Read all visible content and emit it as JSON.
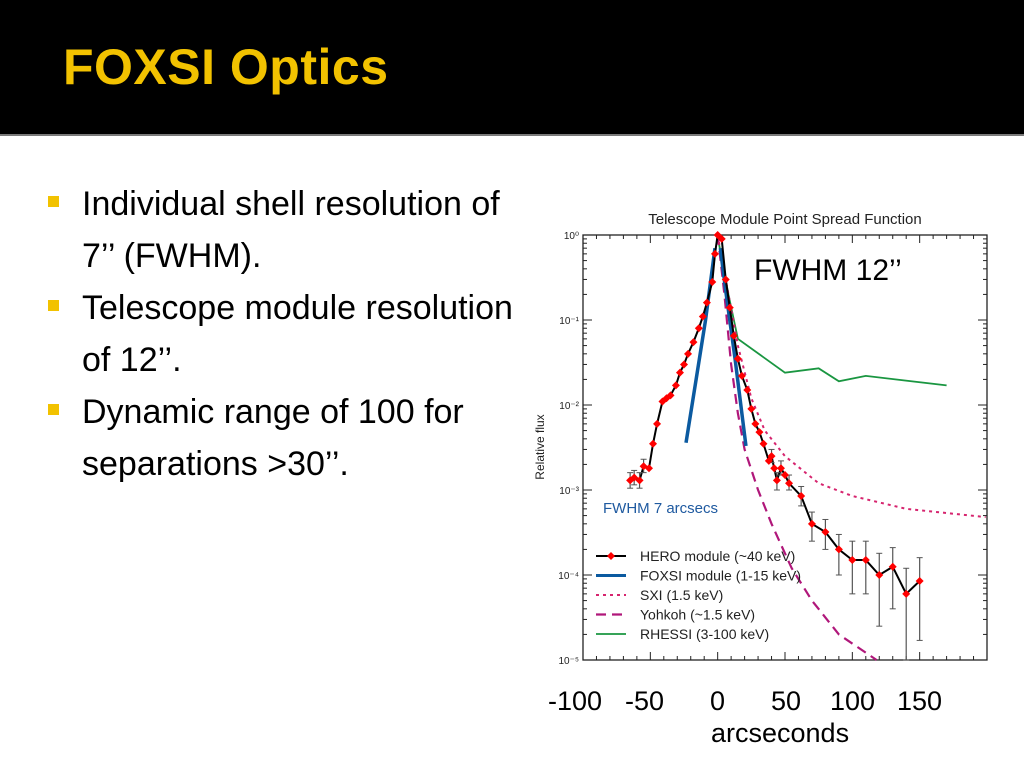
{
  "slide": {
    "title": "FOXSI Optics",
    "bullets": [
      "Individual shell resolution of 7’’ (FWHM).",
      "Telescope module resolution of 12’’.",
      "Dynamic range of 100 for separations >30’’."
    ],
    "x_labels": [
      "-100",
      "-50",
      "0",
      "50",
      "100",
      "150"
    ],
    "x_unit": "arcseconds",
    "annotation": "FWHM 12’’",
    "accent_color": "#f2c200"
  },
  "chart_data": {
    "type": "line",
    "title": "Telescope Module Point Spread Function",
    "xlabel": "",
    "ylabel": "Relative flux",
    "xlim": [
      -100,
      200
    ],
    "ylim": [
      1e-05,
      1
    ],
    "yscale": "log",
    "ytick_labels": [
      "10⁰",
      "10⁻¹",
      "10⁻²",
      "10⁻³",
      "10⁻⁴",
      "10⁻⁵"
    ],
    "annotation": "FWHM 7 arcsecs",
    "legend_position": "bottom-left",
    "series": [
      {
        "name": "HERO module (~40 keV)",
        "color": "#000000",
        "marker_color": "#ff0000",
        "style": "solid-markers",
        "x": [
          -65,
          -62,
          -58,
          -55,
          -51,
          -48,
          -45,
          -41,
          -38,
          -35,
          -31,
          -28,
          -25,
          -22,
          -18,
          -14,
          -11,
          -8,
          -4,
          -2,
          0,
          3,
          6,
          9,
          12,
          15,
          18,
          22,
          25,
          28,
          31,
          34,
          38,
          40,
          42,
          44,
          47,
          50,
          53,
          62,
          70,
          80,
          90,
          100,
          110,
          120,
          130,
          140,
          150
        ],
        "y": [
          0.0013,
          0.0014,
          0.0013,
          0.0019,
          0.0018,
          0.0035,
          0.006,
          0.011,
          0.012,
          0.013,
          0.017,
          0.024,
          0.03,
          0.04,
          0.055,
          0.08,
          0.11,
          0.16,
          0.28,
          0.6,
          1.0,
          0.9,
          0.3,
          0.14,
          0.065,
          0.035,
          0.022,
          0.015,
          0.009,
          0.006,
          0.0048,
          0.0035,
          0.0022,
          0.0025,
          0.0018,
          0.0013,
          0.0018,
          0.0015,
          0.0012,
          0.00085,
          0.0004,
          0.00032,
          0.0002,
          0.00015,
          0.00015,
          0.0001,
          0.000125,
          6e-05,
          8.5e-05
        ],
        "error_bars": [
          {
            "x": -65,
            "low": 0.00105,
            "high": 0.0016
          },
          {
            "x": -62,
            "low": 0.00115,
            "high": 0.0017
          },
          {
            "x": -58,
            "low": 0.00105,
            "high": 0.0016
          },
          {
            "x": -55,
            "low": 0.0016,
            "high": 0.0023
          },
          {
            "x": 40,
            "low": 0.0021,
            "high": 0.003
          },
          {
            "x": 44,
            "low": 0.001,
            "high": 0.0016
          },
          {
            "x": 47,
            "low": 0.0015,
            "high": 0.0022
          },
          {
            "x": 53,
            "low": 0.001,
            "high": 0.0015
          },
          {
            "x": 62,
            "low": 0.00065,
            "high": 0.0011
          },
          {
            "x": 70,
            "low": 0.00025,
            "high": 0.00055
          },
          {
            "x": 80,
            "low": 0.0002,
            "high": 0.00045
          },
          {
            "x": 90,
            "low": 0.0001,
            "high": 0.0003
          },
          {
            "x": 100,
            "low": 6e-05,
            "high": 0.00025
          },
          {
            "x": 110,
            "low": 6e-05,
            "high": 0.00025
          },
          {
            "x": 120,
            "low": 2.5e-05,
            "high": 0.00018
          },
          {
            "x": 130,
            "low": 4e-05,
            "high": 0.00021
          },
          {
            "x": 140,
            "low": 1e-05,
            "high": 0.00012
          },
          {
            "x": 150,
            "low": 1.7e-05,
            "high": 0.00016
          }
        ]
      },
      {
        "name": "FOXSI module (1-15 keV)",
        "color": "#0b5aa0",
        "style": "thick-solid",
        "segments": [
          {
            "x": [
              -23.5,
              -16,
              -9,
              -2
            ],
            "y": [
              0.0036,
              0.02,
              0.1,
              0.7
            ]
          },
          {
            "x": [
              2,
              6,
              13,
              21
            ],
            "y": [
              0.7,
              0.22,
              0.034,
              0.0033
            ]
          }
        ]
      },
      {
        "name": "SXI (1.5 keV)",
        "color": "#d6246e",
        "style": "dotted",
        "x": [
          0,
          6,
          15,
          25,
          35,
          50,
          75,
          100,
          140,
          199
        ],
        "y": [
          1,
          0.3,
          0.05,
          0.012,
          0.005,
          0.0025,
          0.0012,
          0.00085,
          0.0006,
          0.00048
        ]
      },
      {
        "name": "Yohkoh (~1.5 keV)",
        "color": "#b0177a",
        "style": "dashed",
        "x": [
          0,
          5,
          10,
          15,
          20,
          30,
          40,
          55,
          70,
          90,
          118
        ],
        "y": [
          1,
          0.2,
          0.03,
          0.008,
          0.003,
          0.001,
          0.0004,
          0.00012,
          5e-05,
          2e-05,
          1e-05
        ]
      },
      {
        "name": "RHESSI (3-100 keV)",
        "color": "#1a9641",
        "style": "solid",
        "x": [
          0,
          8,
          15,
          50,
          75,
          90,
          110,
          170
        ],
        "y": [
          0.95,
          0.2,
          0.06,
          0.024,
          0.027,
          0.019,
          0.022,
          0.017
        ]
      }
    ]
  }
}
